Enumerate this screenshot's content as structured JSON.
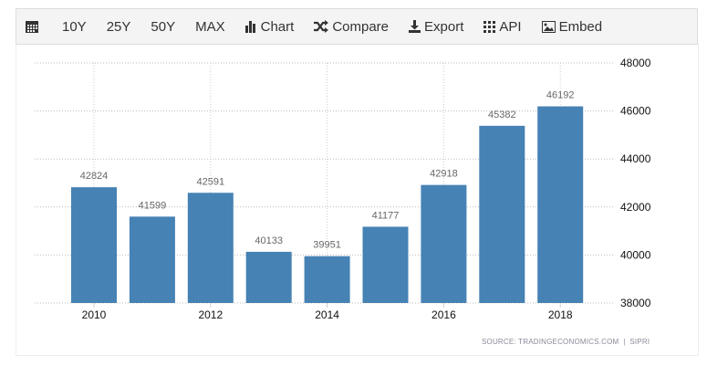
{
  "toolbar": {
    "items": [
      {
        "label": "",
        "icon": "calendar-icon"
      },
      {
        "label": "10Y"
      },
      {
        "label": "25Y"
      },
      {
        "label": "50Y"
      },
      {
        "label": "MAX"
      },
      {
        "label": "Chart",
        "icon": "bar-chart-icon"
      },
      {
        "label": "Compare",
        "icon": "shuffle-icon"
      },
      {
        "label": "Export",
        "icon": "download-icon"
      },
      {
        "label": "API",
        "icon": "grid-icon"
      },
      {
        "label": "Embed",
        "icon": "image-icon"
      }
    ]
  },
  "source": "SOURCE: TRADINGECONOMICS.COM  |  SIPRI",
  "chart_data": {
    "type": "bar",
    "categories": [
      "2010",
      "2011",
      "2012",
      "2013",
      "2014",
      "2015",
      "2016",
      "2017",
      "2018"
    ],
    "values": [
      42824,
      41599,
      42591,
      40133,
      39951,
      41177,
      42918,
      45382,
      46192
    ],
    "x_tick_labels": [
      "2010",
      "2012",
      "2014",
      "2016",
      "2018"
    ],
    "y_ticks": [
      38000,
      40000,
      42000,
      44000,
      46000,
      48000
    ],
    "ylim": [
      38000,
      48000
    ],
    "y_axis_side": "right",
    "grid": true,
    "bar_color": "#4682b4"
  }
}
